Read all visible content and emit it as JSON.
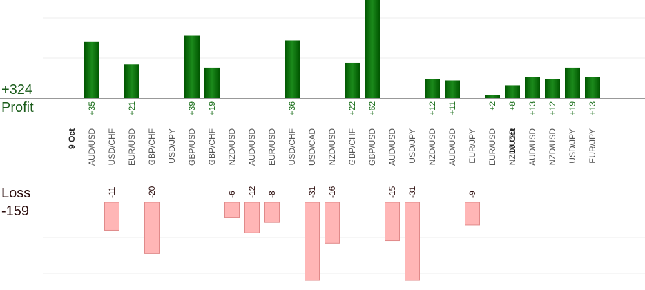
{
  "summary": {
    "profit_total": "+324",
    "profit_label": "Profit",
    "loss_label": "Loss",
    "loss_total": "-159"
  },
  "colors": {
    "profit_bar_dark": "#005500",
    "profit_bar_light": "#1b8a1b",
    "loss_bar_fill": "#ffb6b6",
    "loss_bar_stroke": "#e08a8a",
    "profit_text": "#1a6e1a",
    "loss_text": "#2a0b0b",
    "category_text": "#555555",
    "grid": "#eeeeee",
    "axis": "#999999"
  },
  "chart_data": {
    "type": "bar",
    "categories": [
      {
        "date": "9 Oct",
        "pair": "AUD/USD",
        "profit": 35,
        "loss": null
      },
      {
        "date": "",
        "pair": "USD/CHF",
        "profit": null,
        "loss": -11
      },
      {
        "date": "",
        "pair": "EUR/USD",
        "profit": 21,
        "loss": null
      },
      {
        "date": "",
        "pair": "GBP/CHF",
        "profit": null,
        "loss": -20
      },
      {
        "date": "",
        "pair": "USD/JPY",
        "profit": null,
        "loss": null
      },
      {
        "date": "",
        "pair": "GBP/USD",
        "profit": 39,
        "loss": null
      },
      {
        "date": "",
        "pair": "GBP/CHF",
        "profit": 19,
        "loss": null
      },
      {
        "date": "",
        "pair": "NZD/USD",
        "profit": null,
        "loss": -6
      },
      {
        "date": "",
        "pair": "AUD/USD",
        "profit": null,
        "loss": -12
      },
      {
        "date": "",
        "pair": "EUR/USD",
        "profit": null,
        "loss": -8
      },
      {
        "date": "",
        "pair": "USD/CHF",
        "profit": 36,
        "loss": null
      },
      {
        "date": "",
        "pair": "USD/CAD",
        "profit": null,
        "loss": -31
      },
      {
        "date": "",
        "pair": "NZD/USD",
        "profit": null,
        "loss": -16
      },
      {
        "date": "",
        "pair": "GBP/CHF",
        "profit": 22,
        "loss": null
      },
      {
        "date": "",
        "pair": "GBP/USD",
        "profit": 62,
        "loss": null
      },
      {
        "date": "",
        "pair": "AUD/USD",
        "profit": null,
        "loss": -15
      },
      {
        "date": "",
        "pair": "USD/JPY",
        "profit": null,
        "loss": -31
      },
      {
        "date": "",
        "pair": "NZD/USD",
        "profit": 12,
        "loss": null
      },
      {
        "date": "",
        "pair": "AUD/USD",
        "profit": 11,
        "loss": null
      },
      {
        "date": "",
        "pair": "EUR/JPY",
        "profit": null,
        "loss": -9
      },
      {
        "date": "",
        "pair": "EUR/USD",
        "profit": 2,
        "loss": null
      },
      {
        "date": "",
        "pair": "NZD/USD",
        "profit": 8,
        "loss": null
      },
      {
        "date": "10 Oct",
        "pair": "AUD/USD",
        "profit": 13,
        "loss": null
      },
      {
        "date": "",
        "pair": "NZD/USD",
        "profit": 12,
        "loss": null
      },
      {
        "date": "",
        "pair": "USD/JPY",
        "profit": 19,
        "loss": null
      },
      {
        "date": "",
        "pair": "EUR/JPY",
        "profit": 13,
        "loss": null
      }
    ],
    "profit_labels": [
      "+35",
      "+21",
      "+39",
      "+19",
      "+36",
      "+22",
      "+62",
      "+12",
      "+11",
      "+2",
      "+8",
      "+13",
      "+12",
      "+19",
      "+13"
    ],
    "loss_labels": [
      "-11",
      "-20",
      "-6",
      "-12",
      "-8",
      "-31",
      "-16",
      "-15",
      "-31",
      "-9"
    ],
    "profit_axis_visible_max": 25,
    "loss_axis_visible_min": -30,
    "grid": true,
    "legend": "none"
  }
}
